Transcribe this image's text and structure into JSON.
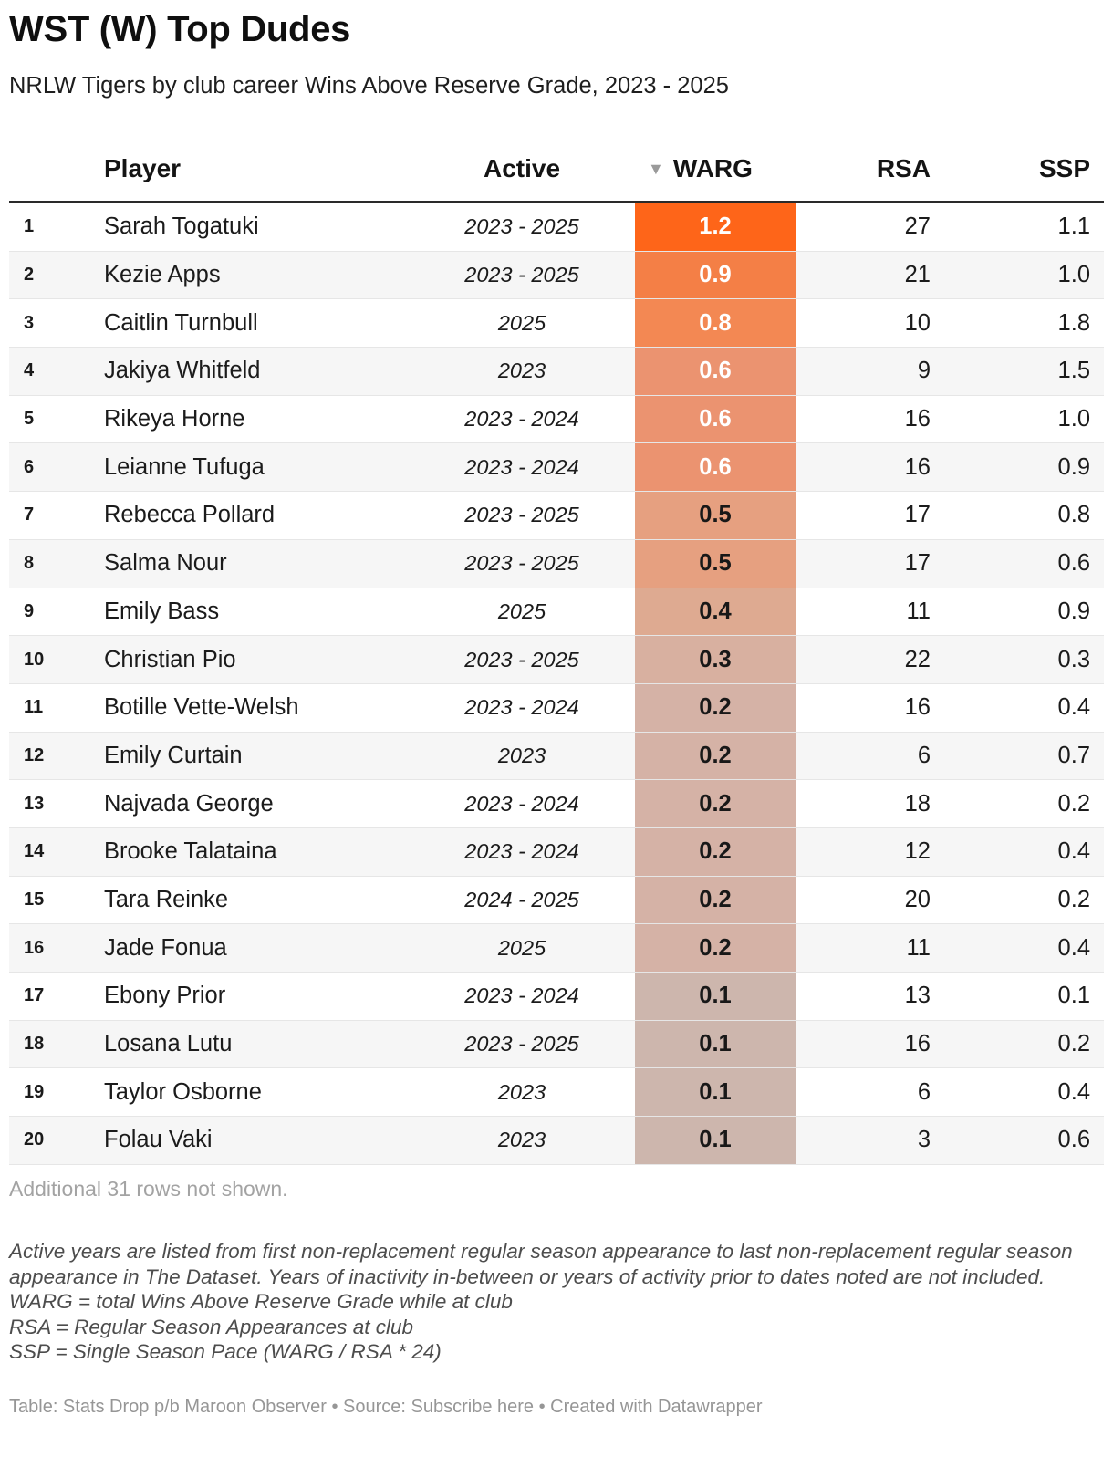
{
  "title": "WST (W) Top Dudes",
  "subtitle": "NRLW Tigers by club career Wins Above Reserve Grade, 2023 - 2025",
  "columns": {
    "player": "Player",
    "active": "Active",
    "warg": "WARG",
    "warg_sort_icon": "sort-descending-icon",
    "rsa": "RSA",
    "ssp": "SSP"
  },
  "rows": [
    {
      "rank": "1",
      "player": "Sarah Togatuki",
      "active": "2023 - 2025",
      "warg": "1.2",
      "rsa": "27",
      "ssp": "1.1"
    },
    {
      "rank": "2",
      "player": "Kezie Apps",
      "active": "2023 - 2025",
      "warg": "0.9",
      "rsa": "21",
      "ssp": "1.0"
    },
    {
      "rank": "3",
      "player": "Caitlin Turnbull",
      "active": "2025",
      "warg": "0.8",
      "rsa": "10",
      "ssp": "1.8"
    },
    {
      "rank": "4",
      "player": "Jakiya Whitfeld",
      "active": "2023",
      "warg": "0.6",
      "rsa": "9",
      "ssp": "1.5"
    },
    {
      "rank": "5",
      "player": "Rikeya Horne",
      "active": "2023 - 2024",
      "warg": "0.6",
      "rsa": "16",
      "ssp": "1.0"
    },
    {
      "rank": "6",
      "player": "Leianne Tufuga",
      "active": "2023 - 2024",
      "warg": "0.6",
      "rsa": "16",
      "ssp": "0.9"
    },
    {
      "rank": "7",
      "player": "Rebecca Pollard",
      "active": "2023 - 2025",
      "warg": "0.5",
      "rsa": "17",
      "ssp": "0.8"
    },
    {
      "rank": "8",
      "player": "Salma Nour",
      "active": "2023 - 2025",
      "warg": "0.5",
      "rsa": "17",
      "ssp": "0.6"
    },
    {
      "rank": "9",
      "player": "Emily Bass",
      "active": "2025",
      "warg": "0.4",
      "rsa": "11",
      "ssp": "0.9"
    },
    {
      "rank": "10",
      "player": "Christian Pio",
      "active": "2023 - 2025",
      "warg": "0.3",
      "rsa": "22",
      "ssp": "0.3"
    },
    {
      "rank": "11",
      "player": "Botille Vette-Welsh",
      "active": "2023 - 2024",
      "warg": "0.2",
      "rsa": "16",
      "ssp": "0.4"
    },
    {
      "rank": "12",
      "player": "Emily Curtain",
      "active": "2023",
      "warg": "0.2",
      "rsa": "6",
      "ssp": "0.7"
    },
    {
      "rank": "13",
      "player": "Najvada George",
      "active": "2023 - 2024",
      "warg": "0.2",
      "rsa": "18",
      "ssp": "0.2"
    },
    {
      "rank": "14",
      "player": "Brooke Talataina",
      "active": "2023 - 2024",
      "warg": "0.2",
      "rsa": "12",
      "ssp": "0.4"
    },
    {
      "rank": "15",
      "player": "Tara Reinke",
      "active": "2024 - 2025",
      "warg": "0.2",
      "rsa": "20",
      "ssp": "0.2"
    },
    {
      "rank": "16",
      "player": "Jade Fonua",
      "active": "2025",
      "warg": "0.2",
      "rsa": "11",
      "ssp": "0.4"
    },
    {
      "rank": "17",
      "player": "Ebony Prior",
      "active": "2023 - 2024",
      "warg": "0.1",
      "rsa": "13",
      "ssp": "0.1"
    },
    {
      "rank": "18",
      "player": "Losana Lutu",
      "active": "2023 - 2025",
      "warg": "0.1",
      "rsa": "16",
      "ssp": "0.2"
    },
    {
      "rank": "19",
      "player": "Taylor Osborne",
      "active": "2023",
      "warg": "0.1",
      "rsa": "6",
      "ssp": "0.4"
    },
    {
      "rank": "20",
      "player": "Folau Vaki",
      "active": "2023",
      "warg": "0.1",
      "rsa": "3",
      "ssp": "0.6"
    }
  ],
  "warg_colors": [
    "#fe6519",
    "#f47f46",
    "#f38853",
    "#eb9370",
    "#eb9370",
    "#eb9370",
    "#e6a080",
    "#e6a080",
    "#deaa91",
    "#d8b0a0",
    "#d5b2a6",
    "#d5b2a6",
    "#d5b2a6",
    "#d5b2a6",
    "#d5b2a6",
    "#d5b2a6",
    "#cdb6ad",
    "#cdb6ad",
    "#cdb6ad",
    "#cdb6ad"
  ],
  "warg_text_colors": [
    "#ffffff",
    "#ffffff",
    "#ffffff",
    "#ffffff",
    "#ffffff",
    "#ffffff",
    "#181818",
    "#181818",
    "#181818",
    "#181818",
    "#181818",
    "#181818",
    "#181818",
    "#181818",
    "#181818",
    "#181818",
    "#181818",
    "#181818",
    "#181818",
    "#181818"
  ],
  "rows_note": "Additional 31 rows not shown.",
  "notes": [
    "Active years are listed from first non-replacement regular season appearance to last non-replacement regular season appearance in The Dataset. Years of inactivity in-between or years of activity prior to dates noted are not included.",
    "WARG = total Wins Above Reserve Grade while at club",
    "RSA = Regular Season Appearances at club",
    "SSP = Single Season Pace (WARG / RSA * 24)"
  ],
  "footer": "Table: Stats Drop p/b Maroon Observer • Source: Subscribe here • Created with Datawrapper"
}
